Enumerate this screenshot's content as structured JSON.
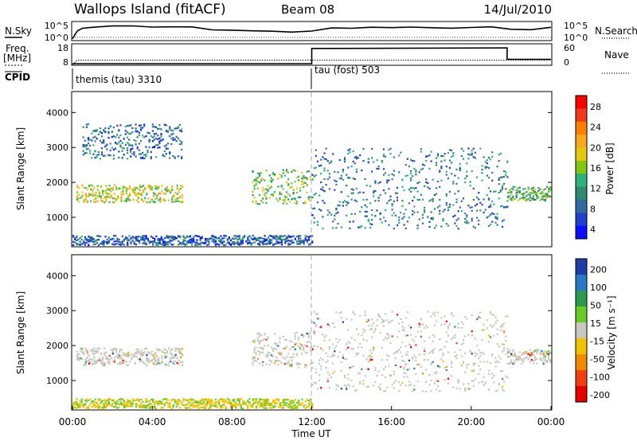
{
  "header": {
    "station": "Wallops Island (fitACF)",
    "beam": "Beam 08",
    "date": "14/Jul/2010"
  },
  "chart_data": [
    {
      "type": "line",
      "id": "nsky-nsearch",
      "left_label": "N.Sky",
      "right_label": "N.Search",
      "left_ticks": [
        "10^5",
        "10^0"
      ],
      "right_ticks": [
        "10^5",
        "10^0"
      ],
      "x": [
        0.0,
        0.25,
        0.5,
        1,
        2,
        3,
        4,
        5,
        6,
        7,
        8,
        9,
        10,
        11,
        12,
        13,
        14,
        15,
        16,
        17,
        18,
        19,
        20,
        21,
        22,
        23,
        24
      ],
      "series": [
        {
          "values": [
            0.3,
            2.6,
            3.3,
            3.6,
            3.7,
            3.8,
            3.6,
            3.7,
            3.4,
            3.1,
            2.8,
            2.5,
            2.3,
            2.4,
            2.6,
            3.1,
            3.3,
            3.4,
            3.6,
            3.4,
            3.5,
            3.3,
            3.3,
            3.4,
            3.3,
            3.2,
            3.3
          ]
        }
      ],
      "ylim": [
        0,
        5
      ]
    },
    {
      "type": "line",
      "id": "freq-nave",
      "left_title": "Freq.",
      "left_unit": "[MHz]",
      "right_label": "Nave",
      "left_ticks": [
        "18",
        "8"
      ],
      "right_ticks": [
        "60",
        "0"
      ],
      "x": [
        0.0,
        0.25,
        12.0,
        12.0,
        21.8,
        21.8,
        24.0
      ],
      "series": [
        {
          "values": [
            7.5,
            10.0,
            10.0,
            10.0,
            10.0,
            10.0,
            10.0
          ]
        },
        {
          "values": [
            0,
            0,
            0,
            52,
            54,
            15,
            15
          ]
        }
      ],
      "ylim": [
        8,
        18
      ]
    },
    {
      "type": "heatmap",
      "id": "power",
      "cpid_label": "CPID",
      "cpid_segments": [
        {
          "start": 0,
          "end": 12,
          "label": "themis (tau) 3310"
        },
        {
          "start": 12,
          "end": 24,
          "label": "tau (fost) 503"
        }
      ],
      "ylabel": "Slant Range [km]",
      "yticks": [
        1000,
        2000,
        3000,
        4000
      ],
      "ylim": [
        180,
        4600
      ],
      "xlim": [
        0,
        24
      ],
      "colorbar": {
        "label": "Power [dB]",
        "ticks": [
          "28",
          "24",
          "20",
          "16",
          "12",
          "8",
          "4"
        ],
        "colors": [
          "#ff0000",
          "#f23a1a",
          "#ff7f00",
          "#f7a820",
          "#e5c70e",
          "#80c810",
          "#2db27a",
          "#2f8a70",
          "#2f6ba0",
          "#1f40d0",
          "#0a10ff"
        ]
      },
      "regions": [
        {
          "t0": 0.2,
          "t1": 5.5,
          "ranges": [
            1450,
            1950
          ],
          "level": 18
        },
        {
          "t0": 0.5,
          "t1": 5.5,
          "ranges": [
            2700,
            3700
          ],
          "level": 8
        },
        {
          "t0": 9.0,
          "t1": 11.9,
          "ranges": [
            1400,
            2400
          ],
          "level": 15
        },
        {
          "t0": 12.0,
          "t1": 21.8,
          "ranges": [
            700,
            3000
          ],
          "level": 9
        },
        {
          "t0": 21.8,
          "t1": 24.0,
          "ranges": [
            1500,
            1900
          ],
          "level": 14
        },
        {
          "t0": 0.0,
          "t1": 12.0,
          "ranges": [
            200,
            500
          ],
          "level": 7
        }
      ]
    },
    {
      "type": "heatmap",
      "id": "velocity",
      "ylabel": "Slant Range [km]",
      "yticks": [
        1000,
        2000,
        3000,
        4000
      ],
      "ylim": [
        180,
        4600
      ],
      "xlim": [
        0,
        24
      ],
      "xticks": [
        "00:00",
        "04:00",
        "08:00",
        "12:00",
        "16:00",
        "20:00",
        "00:00"
      ],
      "xlabel": "Time UT",
      "colorbar": {
        "label": "Velocity [m s⁻¹]",
        "ticks": [
          "200",
          "100",
          "50",
          "15",
          "-15",
          "-50",
          "-100",
          "-200"
        ],
        "colors": [
          "#1e3ca8",
          "#2878c8",
          "#2a9a50",
          "#66cc22",
          "#c8c8c0",
          "#f2c200",
          "#f28a00",
          "#f04010",
          "#e80000"
        ]
      },
      "regions": [
        {
          "t0": 0.2,
          "t1": 5.5,
          "ranges": [
            1450,
            1950
          ],
          "level": 0
        },
        {
          "t0": 9.0,
          "t1": 11.9,
          "ranges": [
            1400,
            2400
          ],
          "level": 0
        },
        {
          "t0": 12.0,
          "t1": 21.8,
          "ranges": [
            700,
            3000
          ],
          "level": 0
        },
        {
          "t0": 21.8,
          "t1": 24.0,
          "ranges": [
            1500,
            1900
          ],
          "level": 0
        },
        {
          "t0": 0.0,
          "t1": 12.0,
          "ranges": [
            200,
            500
          ],
          "level": -40
        }
      ]
    }
  ]
}
